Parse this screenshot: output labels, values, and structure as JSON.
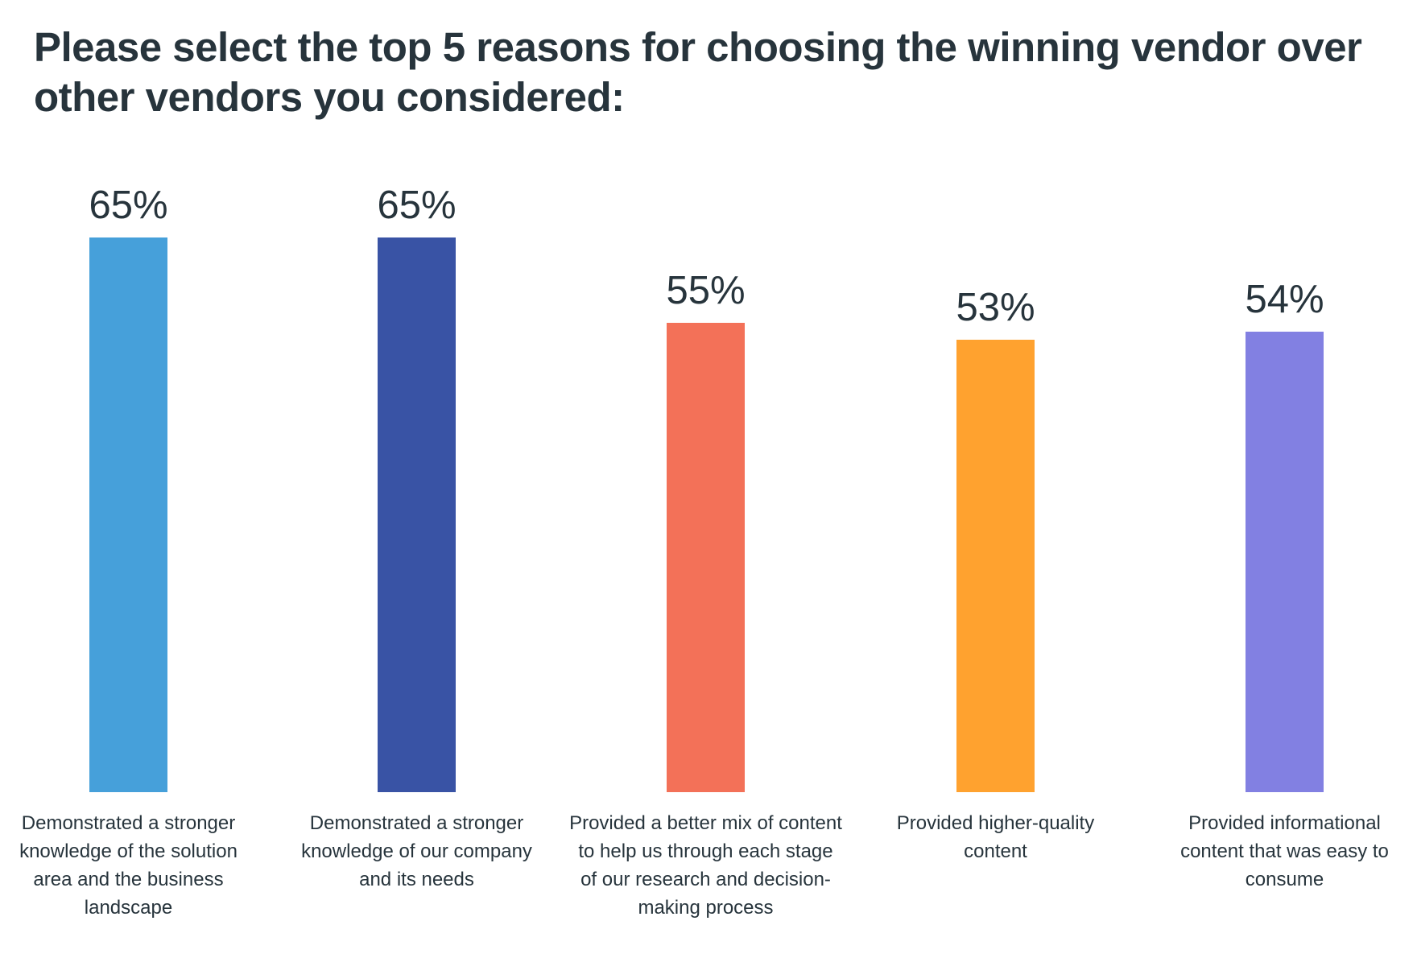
{
  "chart_data": {
    "type": "bar",
    "title": "Please select the top 5 reasons for choosing the winning vendor over other vendors you considered:",
    "categories": [
      "Demonstrated a stronger knowledge of the solution area and the business landscape",
      "Demonstrated a stronger knowledge of our company and its needs",
      "Provided a better mix of content to help us through each stage of our research and decision-making process",
      "Provided higher-quality content",
      "Provided informational content that was easy to consume"
    ],
    "values": [
      65,
      65,
      55,
      53,
      54
    ],
    "value_labels": [
      "65%",
      "65%",
      "55%",
      "53%",
      "54%"
    ],
    "colors": [
      "#46a0da",
      "#3953a5",
      "#f37158",
      "#ffa22f",
      "#8280e2"
    ],
    "xlabel": "",
    "ylabel": "",
    "ylim": [
      0,
      65
    ],
    "grid": false,
    "legend": "none"
  }
}
